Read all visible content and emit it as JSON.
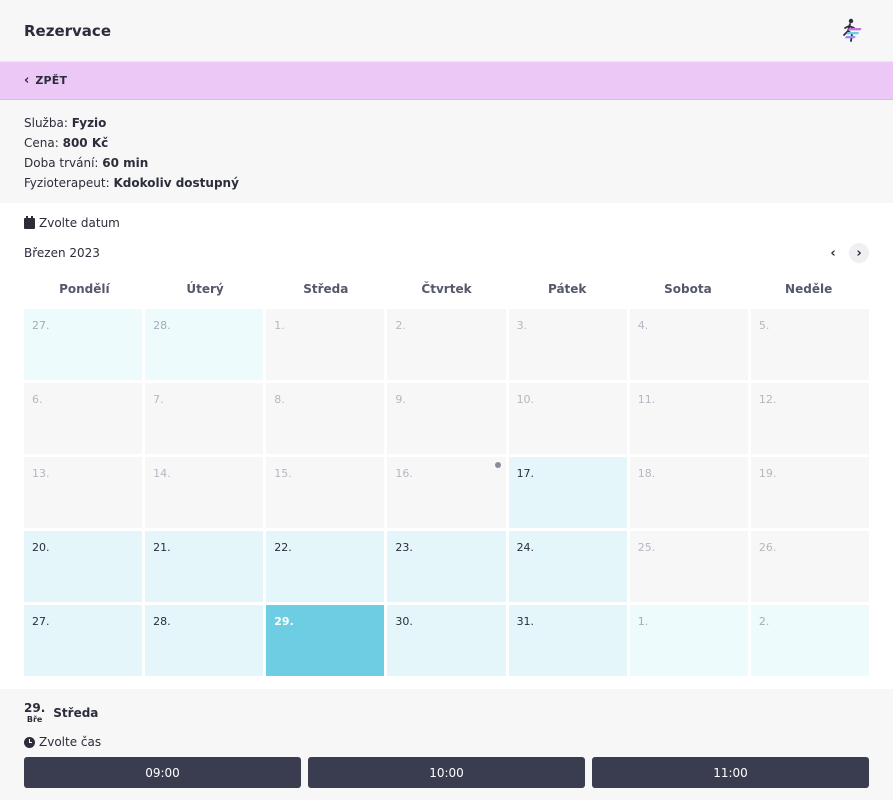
{
  "header": {
    "title": "Rezervace",
    "logo_icon": "runner-logo-icon"
  },
  "back": {
    "label": "ZPĚT",
    "icon": "chevron-left-icon"
  },
  "info": {
    "service_label": "Služba:",
    "service_value": "Fyzio",
    "price_label": "Cena:",
    "price_value": "800 Kč",
    "duration_label": "Doba trvání:",
    "duration_value": "60 min",
    "therapist_label": "Fyzioterapeut:",
    "therapist_value": "Kdokoliv dostupný"
  },
  "calendar": {
    "choose_label": "Zvolte datum",
    "month": "Březen 2023",
    "prev_icon": "‹",
    "next_icon": "›",
    "weekdays": [
      "Pondělí",
      "Úterý",
      "Středa",
      "Čtvrtek",
      "Pátek",
      "Sobota",
      "Neděle"
    ],
    "days": [
      {
        "label": "27.",
        "state": "out-avail"
      },
      {
        "label": "28.",
        "state": "out-avail"
      },
      {
        "label": "1.",
        "state": "dis"
      },
      {
        "label": "2.",
        "state": "dis"
      },
      {
        "label": "3.",
        "state": "dis"
      },
      {
        "label": "4.",
        "state": "dis"
      },
      {
        "label": "5.",
        "state": "dis"
      },
      {
        "label": "6.",
        "state": "dis"
      },
      {
        "label": "7.",
        "state": "dis"
      },
      {
        "label": "8.",
        "state": "dis"
      },
      {
        "label": "9.",
        "state": "dis"
      },
      {
        "label": "10.",
        "state": "dis"
      },
      {
        "label": "11.",
        "state": "dis"
      },
      {
        "label": "12.",
        "state": "dis"
      },
      {
        "label": "13.",
        "state": "dis"
      },
      {
        "label": "14.",
        "state": "dis"
      },
      {
        "label": "15.",
        "state": "dis"
      },
      {
        "label": "16.",
        "state": "dis",
        "dot": true
      },
      {
        "label": "17.",
        "state": "avail"
      },
      {
        "label": "18.",
        "state": "dis"
      },
      {
        "label": "19.",
        "state": "dis"
      },
      {
        "label": "20.",
        "state": "avail"
      },
      {
        "label": "21.",
        "state": "avail"
      },
      {
        "label": "22.",
        "state": "avail"
      },
      {
        "label": "23.",
        "state": "avail"
      },
      {
        "label": "24.",
        "state": "avail"
      },
      {
        "label": "25.",
        "state": "dis"
      },
      {
        "label": "26.",
        "state": "dis"
      },
      {
        "label": "27.",
        "state": "avail"
      },
      {
        "label": "28.",
        "state": "avail"
      },
      {
        "label": "29.",
        "state": "sel"
      },
      {
        "label": "30.",
        "state": "avail"
      },
      {
        "label": "31.",
        "state": "avail"
      },
      {
        "label": "1.",
        "state": "out-avail"
      },
      {
        "label": "2.",
        "state": "out-avail"
      }
    ]
  },
  "selected": {
    "day_number": "29.",
    "month_abbr": "Bře",
    "weekday": "Středa",
    "choose_time_label": "Zvolte čas",
    "times": [
      "09:00",
      "10:00",
      "11:00"
    ]
  },
  "colors": {
    "accent_purple": "#ecc8f7",
    "available": "#e5f6fb",
    "selected": "#6dcee3",
    "time_button": "#3a3c4f"
  }
}
